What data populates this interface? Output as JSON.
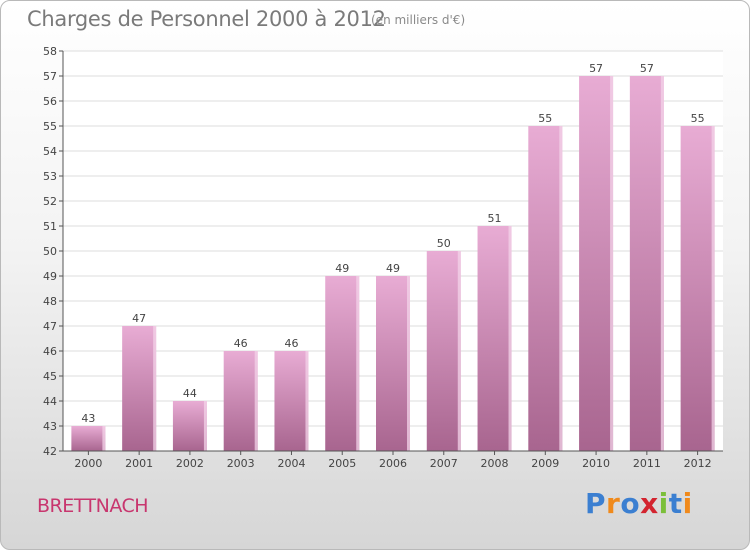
{
  "header": {
    "title": "Charges de Personnel 2000 à 2012",
    "subtitle": "(en milliers d'€)"
  },
  "footer": {
    "commune": "BRETTNACH",
    "logo_text": "Proxiti",
    "logo_colors": [
      "#3b7fd1",
      "#f08a1c",
      "#3b7fd1",
      "#d3242f",
      "#7bbf3a",
      "#3b7fd1",
      "#f08a1c"
    ]
  },
  "colors": {
    "bar_top": "#e8acd4",
    "bar_bottom": "#a8658f",
    "bar_side": "#f3d3e8",
    "grid": "#dddddd"
  },
  "chart_data": {
    "type": "bar",
    "title": "Charges de Personnel 2000 à 2012",
    "subtitle": "(en milliers d'€)",
    "xlabel": "",
    "ylabel": "",
    "categories": [
      "2000",
      "2001",
      "2002",
      "2003",
      "2004",
      "2005",
      "2006",
      "2007",
      "2008",
      "2009",
      "2010",
      "2011",
      "2012"
    ],
    "values": [
      43,
      47,
      44,
      46,
      46,
      49,
      49,
      50,
      51,
      55,
      57,
      57,
      55
    ],
    "ylim": [
      42,
      58
    ],
    "yticks": [
      42,
      43,
      44,
      45,
      46,
      47,
      48,
      49,
      50,
      51,
      52,
      53,
      54,
      55,
      56,
      57,
      58
    ],
    "grid": true,
    "data_labels": true
  }
}
